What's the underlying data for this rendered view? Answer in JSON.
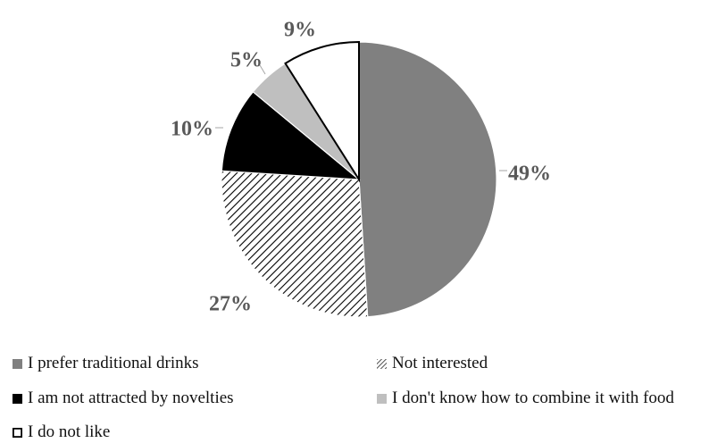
{
  "chart_data": {
    "type": "pie",
    "title": "",
    "slices": [
      {
        "label": "I prefer traditional drinks",
        "value": 49,
        "display": "49%",
        "color": "#808080",
        "pattern": "solid"
      },
      {
        "label": "Not interested",
        "value": 27,
        "display": "27%",
        "color": "#000000",
        "pattern": "diagonal-hatch"
      },
      {
        "label": "I am not attracted by novelties",
        "value": 10,
        "display": "10%",
        "color": "#000000",
        "pattern": "solid"
      },
      {
        "label": "I don't know how to combine it with food",
        "value": 5,
        "display": "5%",
        "color": "#bfbfbf",
        "pattern": "solid"
      },
      {
        "label": "I do not like",
        "value": 9,
        "display": "9%",
        "color": "#ffffff",
        "pattern": "outline"
      }
    ],
    "start_angle": "12 o'clock",
    "direction": "clockwise",
    "legend_position": "bottom"
  }
}
